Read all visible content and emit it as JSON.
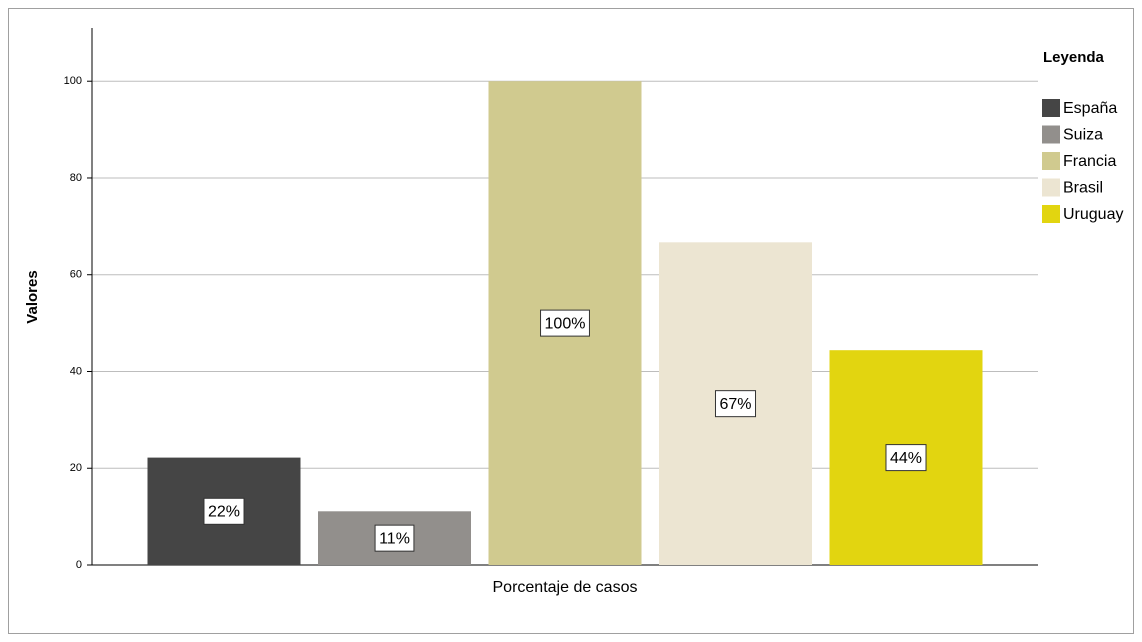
{
  "chart_data": {
    "type": "bar",
    "y_label": "Valores",
    "categories": [
      "Porcentaje de casos"
    ],
    "legend_title": "Leyenda",
    "legend": "right",
    "series": [
      {
        "name": "España",
        "color": "#454545",
        "values": [
          22.2
        ],
        "value_labels": [
          "22%"
        ]
      },
      {
        "name": "Suiza",
        "color": "#928f8c",
        "values": [
          11.1
        ],
        "value_labels": [
          "11%"
        ]
      },
      {
        "name": "Francia",
        "color": "#d0ca8f",
        "values": [
          100
        ],
        "value_labels": [
          "100%"
        ]
      },
      {
        "name": "Brasil",
        "color": "#ece5d2",
        "values": [
          66.7
        ],
        "value_labels": [
          "67%"
        ]
      },
      {
        "name": "Uruguay",
        "color": "#e2d510",
        "values": [
          44.4
        ],
        "value_labels": [
          "44%"
        ]
      }
    ],
    "ylim": [
      0,
      111
    ],
    "yticks": [
      0,
      20,
      40,
      60,
      80,
      100
    ],
    "grid": true
  }
}
